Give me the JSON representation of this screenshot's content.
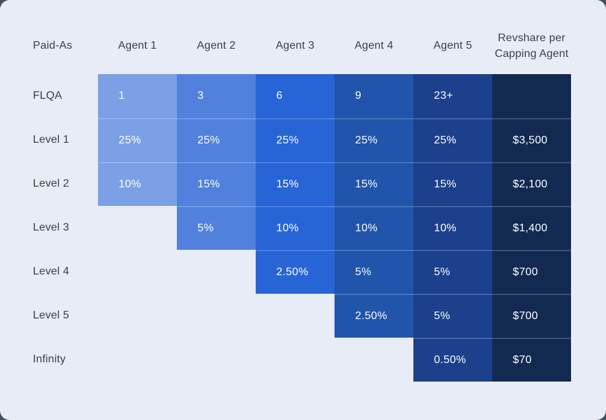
{
  "page": {
    "outside_background": "#42525E",
    "card_background": "#E8ECF7",
    "label_text_color": "#3C4043",
    "cell_text_color": "#FFFFFF"
  },
  "chart_data": {
    "type": "table",
    "title": "Revshare per Capping Agent matrix",
    "header": {
      "row_label": "Paid-As",
      "agents": [
        "Agent 1",
        "Agent 2",
        "Agent 3",
        "Agent 4",
        "Agent 5"
      ],
      "revshare_label": "Revshare per Capping Agent"
    },
    "column_colors": {
      "agents": [
        "#7CA0E5",
        "#5181DD",
        "#2765D6",
        "#2154AB",
        "#1C408B"
      ],
      "revshare": "#122A52"
    },
    "rows": [
      {
        "label": "FLQA",
        "agent_values": [
          "1",
          "3",
          "6",
          "9",
          "23+"
        ],
        "revshare": ""
      },
      {
        "label": "Level 1",
        "agent_values": [
          "25%",
          "25%",
          "25%",
          "25%",
          "25%"
        ],
        "revshare": "$3,500"
      },
      {
        "label": "Level 2",
        "agent_values": [
          "10%",
          "15%",
          "15%",
          "15%",
          "15%"
        ],
        "revshare": "$2,100"
      },
      {
        "label": "Level 3",
        "agent_values": [
          null,
          "5%",
          "10%",
          "10%",
          "10%"
        ],
        "revshare": "$1,400"
      },
      {
        "label": "Level 4",
        "agent_values": [
          null,
          null,
          "2.50%",
          "5%",
          "5%"
        ],
        "revshare": "$700"
      },
      {
        "label": "Level 5",
        "agent_values": [
          null,
          null,
          null,
          "2.50%",
          "5%"
        ],
        "revshare": "$700"
      },
      {
        "label": "Infinity",
        "agent_values": [
          null,
          null,
          null,
          null,
          "0.50%"
        ],
        "revshare": "$70"
      }
    ],
    "layout": {
      "legend_position": "none",
      "grid": "staircase: each agent column is filled from the FLQA row down, ending one row later per agent; revshare column spans all rows",
      "row_separator": "thin light line between stacked cells"
    }
  }
}
